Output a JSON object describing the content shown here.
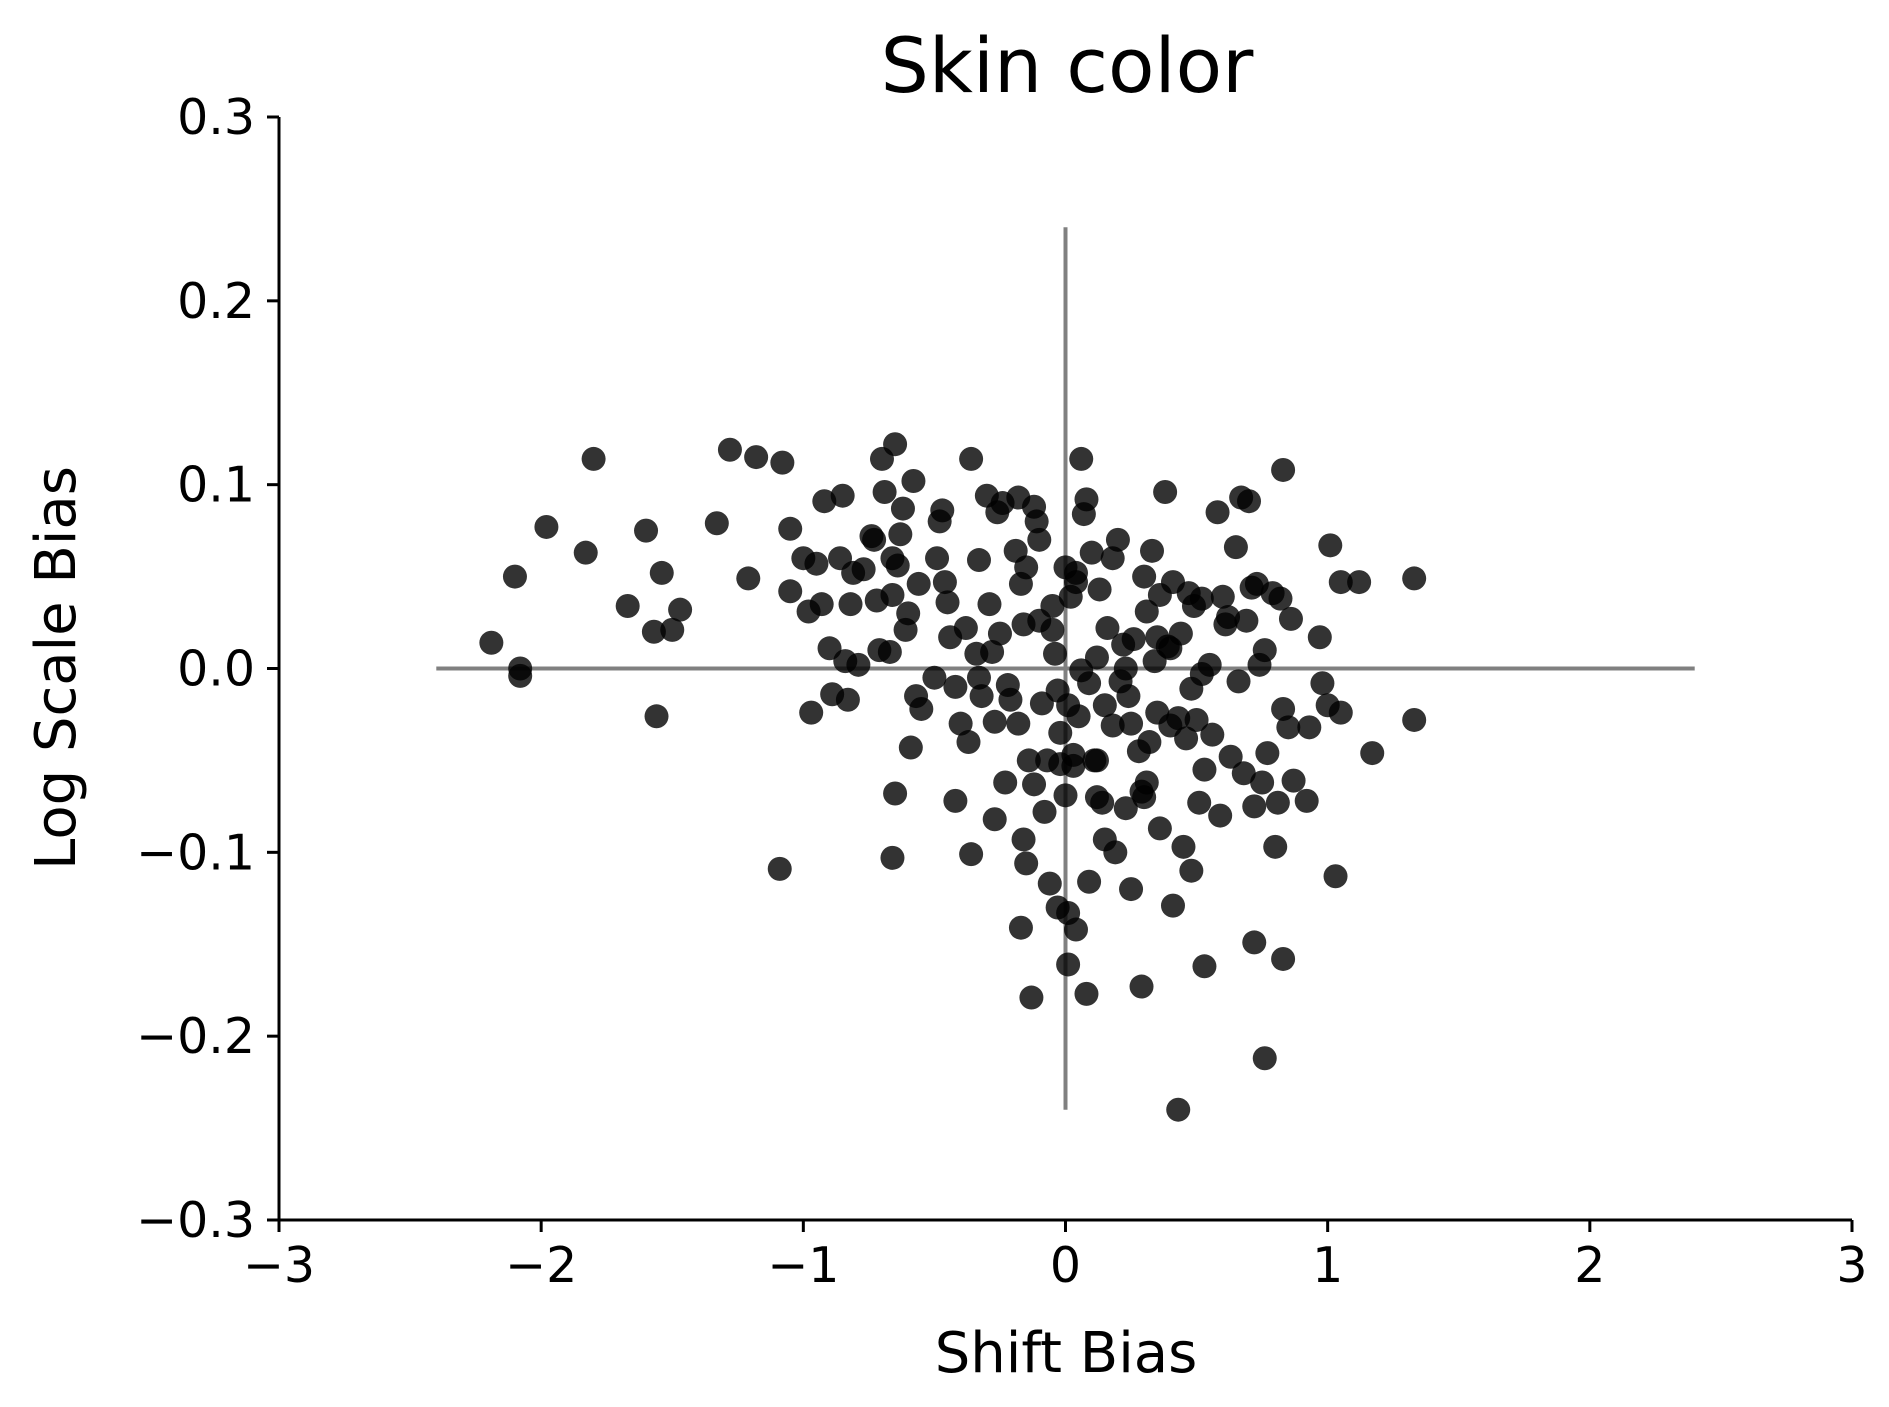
{
  "chart_data": {
    "type": "scatter",
    "title": "Skin color",
    "xlabel": "Shift Bias",
    "ylabel": "Log Scale Bias",
    "xlim": [
      -3,
      3
    ],
    "ylim": [
      -0.3,
      0.3
    ],
    "xticks": [
      -3,
      -2,
      -1,
      0,
      1,
      2,
      3
    ],
    "xtick_labels": [
      "−3",
      "−2",
      "−1",
      "0",
      "1",
      "2",
      "3"
    ],
    "yticks": [
      -0.3,
      -0.2,
      -0.1,
      0.0,
      0.1,
      0.2,
      0.3
    ],
    "ytick_labels": [
      "−0.3",
      "−0.2",
      "−0.1",
      "0.0",
      "0.1",
      "0.2",
      "0.3"
    ],
    "grid": false,
    "marker_color": "#000000",
    "reference_line_color": "#808080",
    "reference_lines": {
      "horizontal": {
        "y": 0,
        "x_range": [
          -2.4,
          2.4
        ]
      },
      "vertical": {
        "x": 0,
        "y_range": [
          -0.24,
          0.24
        ]
      }
    },
    "points": [
      [
        -2.19,
        0.014
      ],
      [
        -2.1,
        0.05
      ],
      [
        -2.08,
        0.0
      ],
      [
        -2.08,
        -0.004
      ],
      [
        -1.98,
        0.077
      ],
      [
        -1.83,
        0.063
      ],
      [
        -1.8,
        0.114
      ],
      [
        -1.67,
        0.034
      ],
      [
        -1.6,
        0.075
      ],
      [
        -1.57,
        0.02
      ],
      [
        -1.56,
        -0.026
      ],
      [
        -1.54,
        0.052
      ],
      [
        -1.5,
        0.021
      ],
      [
        -1.47,
        0.032
      ],
      [
        -1.33,
        0.079
      ],
      [
        -1.28,
        0.119
      ],
      [
        -1.18,
        0.115
      ],
      [
        -1.08,
        0.112
      ],
      [
        -1.21,
        0.049
      ],
      [
        -1.05,
        0.076
      ],
      [
        -1.05,
        0.042
      ],
      [
        -1.0,
        0.06
      ],
      [
        -0.98,
        0.031
      ],
      [
        -0.97,
        -0.024
      ],
      [
        -0.95,
        0.057
      ],
      [
        -0.93,
        0.035
      ],
      [
        -0.92,
        0.091
      ],
      [
        -0.9,
        0.011
      ],
      [
        -0.89,
        -0.014
      ],
      [
        -0.86,
        0.06
      ],
      [
        -0.85,
        0.094
      ],
      [
        -0.84,
        0.004
      ],
      [
        -0.83,
        -0.017
      ],
      [
        -0.82,
        0.035
      ],
      [
        -0.81,
        0.052
      ],
      [
        -0.79,
        0.002
      ],
      [
        -0.77,
        0.054
      ],
      [
        -0.74,
        0.072
      ],
      [
        -0.73,
        0.07
      ],
      [
        -0.72,
        0.037
      ],
      [
        -0.71,
        0.01
      ],
      [
        -0.7,
        0.114
      ],
      [
        -0.69,
        0.096
      ],
      [
        -0.67,
        0.009
      ],
      [
        -0.66,
        0.06
      ],
      [
        -0.66,
        0.04
      ],
      [
        -0.65,
        0.122
      ],
      [
        -0.64,
        0.056
      ],
      [
        -0.63,
        0.073
      ],
      [
        -0.62,
        0.087
      ],
      [
        -0.61,
        0.021
      ],
      [
        -0.6,
        0.03
      ],
      [
        -0.58,
        0.102
      ],
      [
        -0.57,
        -0.015
      ],
      [
        -0.56,
        0.046
      ],
      [
        -0.55,
        -0.022
      ],
      [
        -0.49,
        0.06
      ],
      [
        -0.48,
        0.08
      ],
      [
        -0.47,
        0.086
      ],
      [
        -0.46,
        0.047
      ],
      [
        -0.45,
        0.036
      ],
      [
        -0.44,
        0.017
      ],
      [
        -0.42,
        -0.01
      ],
      [
        -0.4,
        -0.03
      ],
      [
        -0.38,
        0.022
      ],
      [
        -0.37,
        -0.04
      ],
      [
        -0.36,
        0.114
      ],
      [
        -0.34,
        0.008
      ],
      [
        -0.33,
        0.059
      ],
      [
        -0.32,
        -0.015
      ],
      [
        -0.3,
        0.094
      ],
      [
        -0.29,
        0.035
      ],
      [
        -0.28,
        0.009
      ],
      [
        -0.27,
        -0.029
      ],
      [
        -0.26,
        0.085
      ],
      [
        -0.25,
        0.019
      ],
      [
        -0.24,
        0.09
      ],
      [
        -0.22,
        -0.009
      ],
      [
        -0.21,
        -0.017
      ],
      [
        -0.19,
        0.064
      ],
      [
        -0.18,
        0.093
      ],
      [
        -0.17,
        0.046
      ],
      [
        -0.16,
        0.024
      ],
      [
        -0.15,
        0.055
      ],
      [
        -0.14,
        -0.05
      ],
      [
        -0.12,
        0.088
      ],
      [
        -0.11,
        0.08
      ],
      [
        -0.1,
        0.07
      ],
      [
        -0.1,
        0.026
      ],
      [
        -0.09,
        -0.019
      ],
      [
        -0.08,
        -0.078
      ],
      [
        -0.07,
        -0.05
      ],
      [
        -0.05,
        0.034
      ],
      [
        -0.04,
        0.008
      ],
      [
        -0.03,
        -0.012
      ],
      [
        -0.02,
        -0.035
      ],
      [
        0.0,
        0.055
      ],
      [
        0.01,
        -0.02
      ],
      [
        0.02,
        0.039
      ],
      [
        0.03,
        -0.047
      ],
      [
        0.04,
        0.047
      ],
      [
        0.05,
        -0.026
      ],
      [
        0.06,
        0.114
      ],
      [
        0.07,
        0.084
      ],
      [
        0.08,
        0.092
      ],
      [
        0.09,
        -0.008
      ],
      [
        0.1,
        0.063
      ],
      [
        0.11,
        -0.05
      ],
      [
        0.12,
        0.006
      ],
      [
        0.13,
        0.043
      ],
      [
        0.14,
        -0.073
      ],
      [
        0.15,
        -0.02
      ],
      [
        0.16,
        0.022
      ],
      [
        0.18,
        -0.031
      ],
      [
        0.19,
        -0.1
      ],
      [
        0.2,
        0.07
      ],
      [
        0.21,
        -0.007
      ],
      [
        0.22,
        0.013
      ],
      [
        0.23,
        -0.076
      ],
      [
        0.24,
        -0.015
      ],
      [
        0.25,
        -0.03
      ],
      [
        0.26,
        0.016
      ],
      [
        0.28,
        -0.045
      ],
      [
        0.29,
        -0.067
      ],
      [
        0.3,
        0.05
      ],
      [
        0.31,
        0.031
      ],
      [
        0.32,
        -0.04
      ],
      [
        0.33,
        0.064
      ],
      [
        0.34,
        0.004
      ],
      [
        0.35,
        -0.024
      ],
      [
        0.36,
        0.04
      ],
      [
        0.38,
        0.096
      ],
      [
        0.39,
        0.012
      ],
      [
        0.4,
        -0.031
      ],
      [
        0.41,
        0.047
      ],
      [
        0.43,
        -0.027
      ],
      [
        0.44,
        0.019
      ],
      [
        0.45,
        -0.097
      ],
      [
        0.46,
        -0.038
      ],
      [
        0.47,
        0.041
      ],
      [
        0.48,
        -0.011
      ],
      [
        0.5,
        -0.028
      ],
      [
        0.51,
        -0.073
      ],
      [
        0.52,
        0.038
      ],
      [
        0.53,
        -0.055
      ],
      [
        0.55,
        0.002
      ],
      [
        0.56,
        -0.036
      ],
      [
        0.58,
        0.085
      ],
      [
        0.59,
        -0.08
      ],
      [
        0.6,
        0.039
      ],
      [
        0.61,
        0.024
      ],
      [
        0.63,
        -0.048
      ],
      [
        0.65,
        0.066
      ],
      [
        0.66,
        -0.007
      ],
      [
        0.67,
        0.093
      ],
      [
        0.68,
        -0.057
      ],
      [
        0.69,
        0.026
      ],
      [
        0.7,
        0.091
      ],
      [
        0.72,
        -0.075
      ],
      [
        0.73,
        0.046
      ],
      [
        0.74,
        0.002
      ],
      [
        0.75,
        -0.062
      ],
      [
        0.76,
        0.01
      ],
      [
        0.77,
        -0.046
      ],
      [
        0.79,
        0.041
      ],
      [
        0.8,
        -0.097
      ],
      [
        0.81,
        -0.073
      ],
      [
        0.82,
        0.038
      ],
      [
        0.83,
        -0.022
      ],
      [
        0.85,
        -0.032
      ],
      [
        0.86,
        0.027
      ],
      [
        0.87,
        -0.061
      ],
      [
        0.92,
        -0.072
      ],
      [
        0.93,
        -0.032
      ],
      [
        0.97,
        0.017
      ],
      [
        0.98,
        -0.008
      ],
      [
        1.0,
        -0.02
      ],
      [
        1.01,
        0.067
      ],
      [
        1.03,
        -0.113
      ],
      [
        1.05,
        0.047
      ],
      [
        1.05,
        -0.024
      ],
      [
        1.12,
        0.047
      ],
      [
        1.17,
        -0.046
      ],
      [
        1.33,
        0.049
      ],
      [
        1.33,
        -0.028
      ],
      [
        0.83,
        0.108
      ],
      [
        0.71,
        0.044
      ],
      [
        0.62,
        0.028
      ],
      [
        0.49,
        0.034
      ],
      [
        0.35,
        0.017
      ],
      [
        0.18,
        0.06
      ],
      [
        0.04,
        0.052
      ],
      [
        -1.09,
        -0.109
      ],
      [
        -0.66,
        -0.103
      ],
      [
        -0.65,
        -0.068
      ],
      [
        -0.59,
        -0.043
      ],
      [
        -0.42,
        -0.072
      ],
      [
        -0.36,
        -0.101
      ],
      [
        -0.27,
        -0.082
      ],
      [
        -0.23,
        -0.062
      ],
      [
        -0.16,
        -0.093
      ],
      [
        -0.15,
        -0.106
      ],
      [
        -0.12,
        -0.063
      ],
      [
        -0.06,
        -0.117
      ],
      [
        -0.03,
        -0.13
      ],
      [
        0.01,
        -0.133
      ],
      [
        0.04,
        -0.142
      ],
      [
        0.09,
        -0.116
      ],
      [
        0.12,
        -0.07
      ],
      [
        0.15,
        -0.093
      ],
      [
        0.25,
        -0.12
      ],
      [
        0.3,
        -0.07
      ],
      [
        0.36,
        -0.087
      ],
      [
        0.41,
        -0.129
      ],
      [
        0.48,
        -0.11
      ],
      [
        0.53,
        -0.162
      ],
      [
        0.72,
        -0.149
      ],
      [
        0.76,
        -0.212
      ],
      [
        0.83,
        -0.158
      ],
      [
        -0.17,
        -0.141
      ],
      [
        -0.13,
        -0.179
      ],
      [
        0.01,
        -0.161
      ],
      [
        0.08,
        -0.177
      ],
      [
        0.29,
        -0.173
      ],
      [
        0.43,
        -0.24
      ],
      [
        0.0,
        -0.069
      ],
      [
        -0.02,
        -0.052
      ],
      [
        0.03,
        -0.053
      ],
      [
        0.12,
        -0.05
      ],
      [
        0.31,
        -0.062
      ],
      [
        -0.5,
        -0.005
      ],
      [
        -0.33,
        -0.005
      ],
      [
        -0.18,
        -0.03
      ],
      [
        -0.05,
        0.021
      ],
      [
        0.06,
        -0.001
      ],
      [
        0.23,
        0.0
      ],
      [
        0.4,
        0.011
      ],
      [
        0.52,
        -0.003
      ]
    ]
  }
}
